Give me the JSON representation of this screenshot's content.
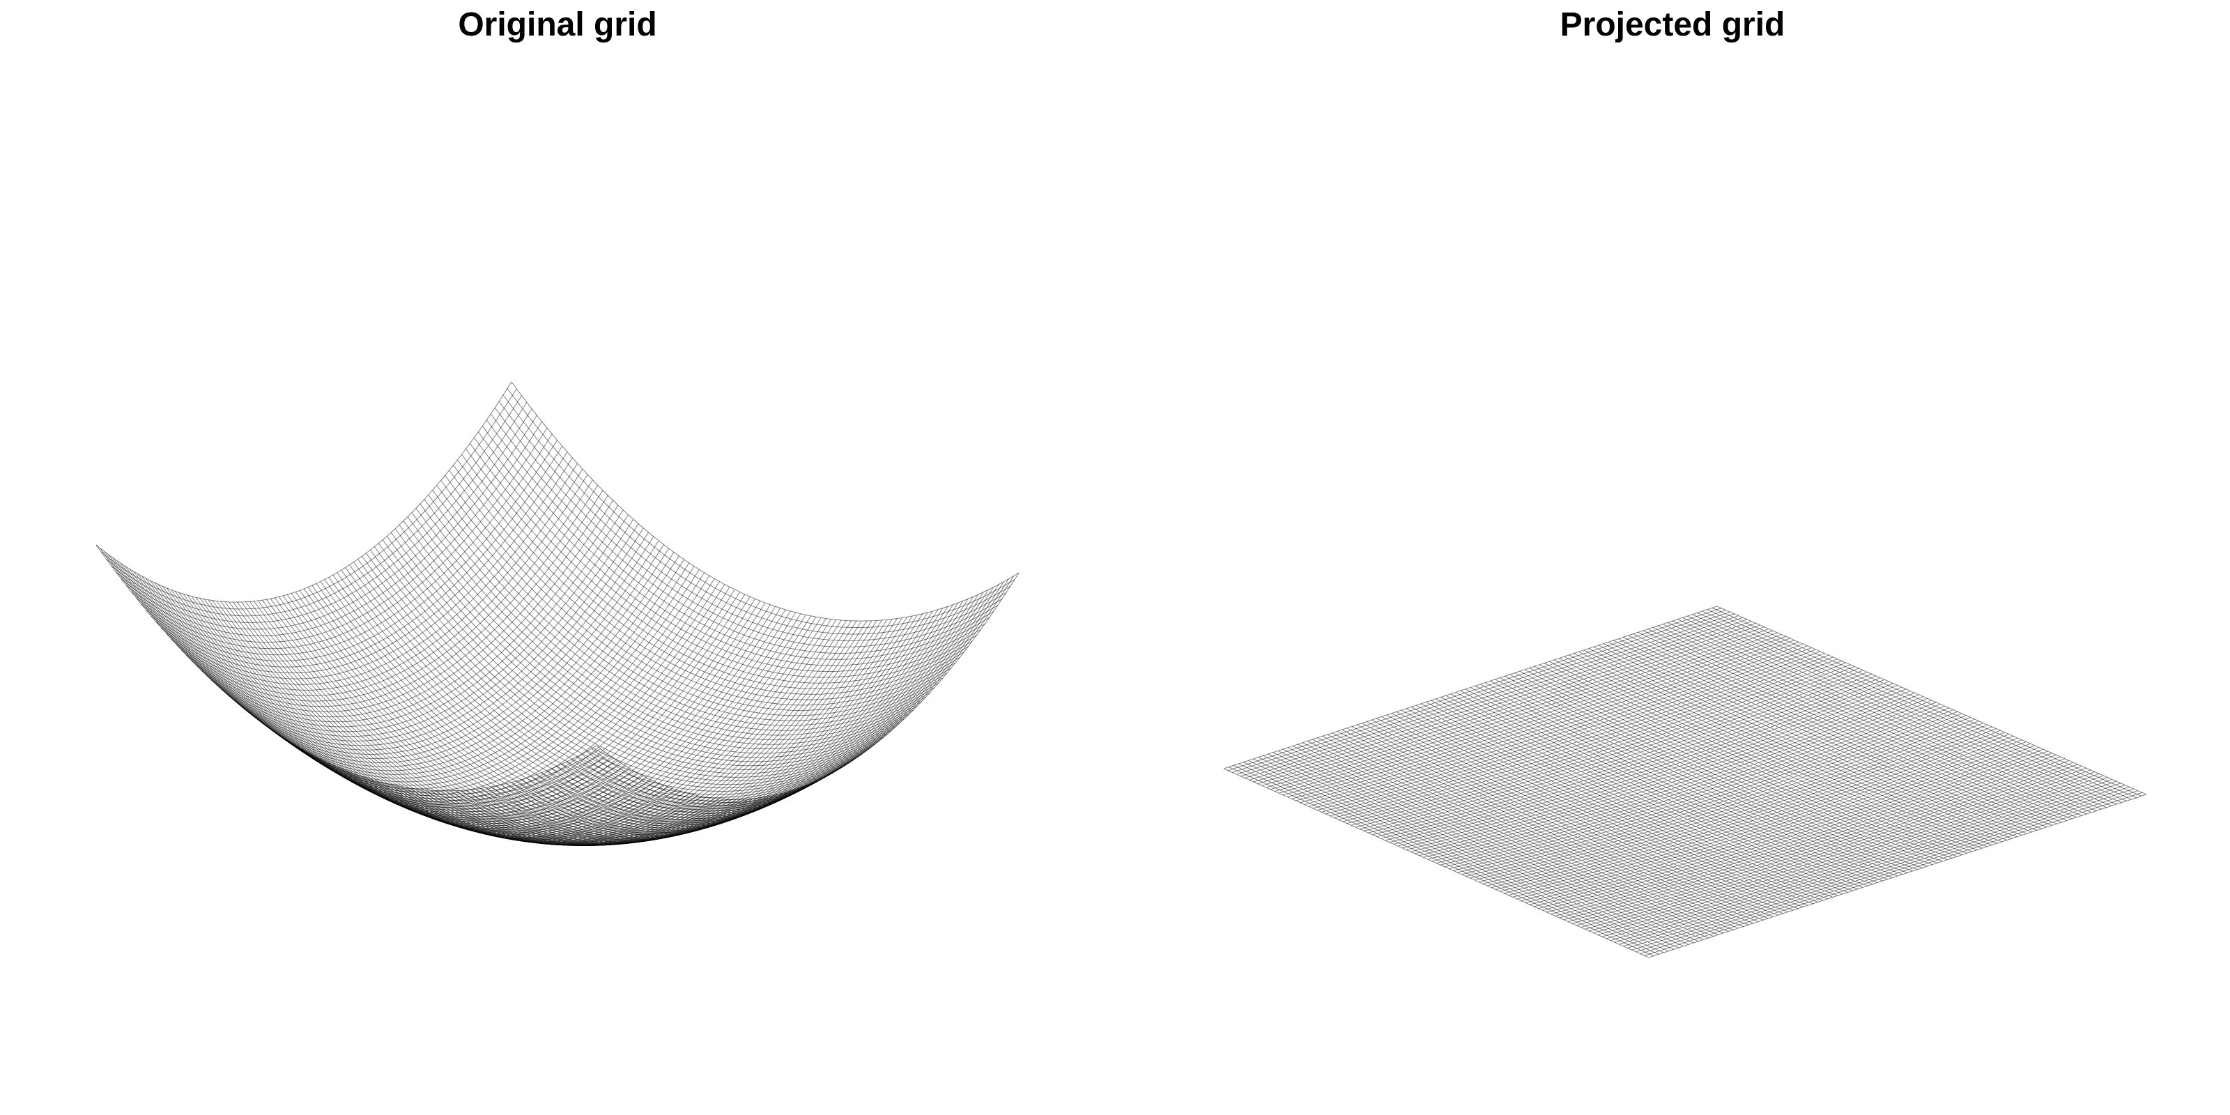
{
  "panels": {
    "left": {
      "title": "Original grid",
      "surface": "paraboloid-mesh"
    },
    "right": {
      "title": "Projected grid",
      "surface": "flat-mesh"
    }
  },
  "style": {
    "line_color": "#000000",
    "background": "#ffffff"
  }
}
